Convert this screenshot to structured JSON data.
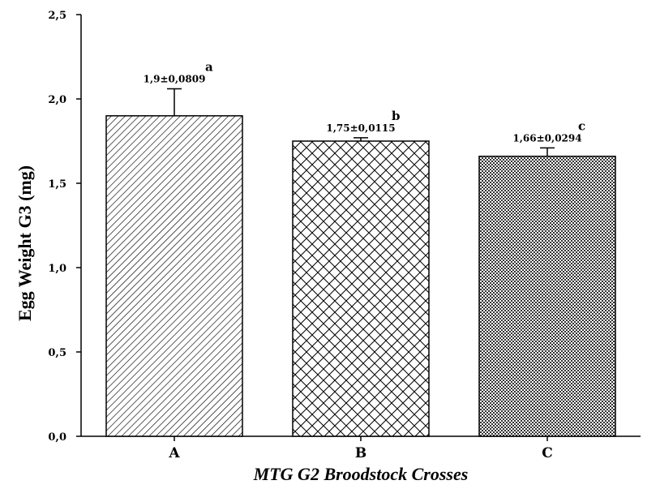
{
  "chart_data": {
    "type": "bar",
    "categories": [
      "A",
      "B",
      "C"
    ],
    "values": [
      1.9,
      1.75,
      1.66
    ],
    "errors": [
      0.16,
      0.02,
      0.05
    ],
    "value_labels": [
      "1,9±0,0809",
      "1,75±0,0115",
      "1,66±0,0294"
    ],
    "significance_letters": [
      "a",
      "b",
      "c"
    ],
    "bar_patterns": [
      "diagonal-hatch",
      "cross-hatch",
      "fine-dots"
    ],
    "xlabel": "MTG G2 Broodstock Crosses",
    "ylabel": "Egg Weight G3 (mg)",
    "ylim": [
      0,
      2.5
    ],
    "yticks": [
      0,
      0.5,
      1.0,
      1.5,
      2.0,
      2.5
    ],
    "ytick_labels": [
      "0,0",
      "0,5",
      "1,0",
      "1,5",
      "2,0",
      "2,5"
    ],
    "grid": false,
    "legend": "none"
  }
}
